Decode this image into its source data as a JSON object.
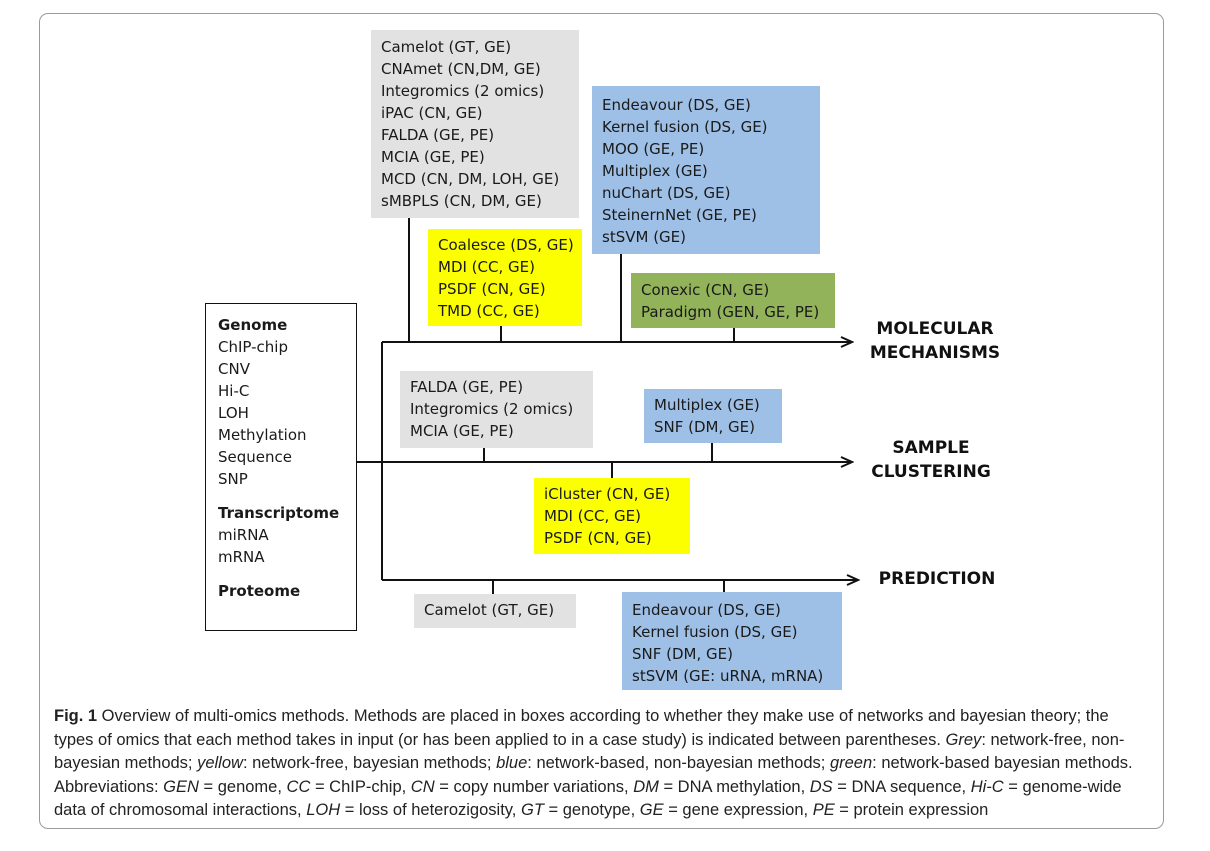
{
  "omics_box": {
    "groups": [
      {
        "heading": "Genome",
        "items": [
          "ChIP-chip",
          "CNV",
          "Hi-C",
          "LOH",
          "Methylation",
          "Sequence",
          "SNP"
        ]
      },
      {
        "heading": "Transcriptome",
        "items": [
          "miRNA",
          "mRNA"
        ]
      },
      {
        "heading": "Proteome",
        "items": []
      }
    ]
  },
  "outputs": {
    "molecular": [
      "MOLECULAR",
      "MECHANISMS"
    ],
    "clustering": [
      "SAMPLE",
      "CLUSTERING"
    ],
    "prediction": [
      "PREDICTION"
    ]
  },
  "colors": {
    "grey": "#e2e2e2",
    "blue": "#9fc0e6",
    "yellow": "#fcff00",
    "green": "#92b35a"
  },
  "boxes": {
    "mm_grey": [
      "Camelot (GT, GE)",
      "CNAmet (CN,DM, GE)",
      "Integromics (2 omics)",
      "iPAC (CN, GE)",
      "FALDA (GE, PE)",
      "MCIA (GE, PE)",
      "MCD (CN, DM, LOH, GE)",
      "sMBPLS (CN, DM, GE)"
    ],
    "mm_blue": [
      "Endeavour (DS, GE)",
      "Kernel fusion (DS, GE)",
      "MOO (GE, PE)",
      "Multiplex (GE)",
      "nuChart (DS, GE)",
      "SteinernNet (GE, PE)",
      "stSVM (GE)"
    ],
    "mm_yellow": [
      "Coalesce (DS, GE)",
      "MDI (CC, GE)",
      "PSDF (CN, GE)",
      "TMD (CC, GE)"
    ],
    "mm_green": [
      "Conexic (CN, GE)",
      "Paradigm (GEN, GE, PE)"
    ],
    "sc_grey": [
      "FALDA (GE, PE)",
      "Integromics (2 omics)",
      "MCIA (GE, PE)"
    ],
    "sc_blue": [
      "Multiplex (GE)",
      "SNF (DM, GE)"
    ],
    "sc_yellow": [
      "iCluster (CN, GE)",
      "MDI (CC, GE)",
      "PSDF (CN, GE)"
    ],
    "pr_grey": [
      "Camelot (GT, GE)"
    ],
    "pr_blue": [
      "Endeavour (DS, GE)",
      "Kernel fusion (DS, GE)",
      "SNF (DM, GE)",
      "stSVM (GE: uRNA, mRNA)"
    ]
  },
  "caption": {
    "fig_label": "Fig. 1",
    "segments": [
      {
        "t": " Overview of multi-omics methods. Methods are placed in boxes according to whether they make use of networks and bayesian theory; the types of omics that each method takes in input (or has been applied to in a case study) is indicated between parentheses. ",
        "i": false
      },
      {
        "t": "Grey",
        "i": true
      },
      {
        "t": ": network-free, non-bayesian methods; ",
        "i": false
      },
      {
        "t": "yellow",
        "i": true
      },
      {
        "t": ": network-free, bayesian methods; ",
        "i": false
      },
      {
        "t": "blue",
        "i": true
      },
      {
        "t": ": network-based, non-bayesian methods; ",
        "i": false
      },
      {
        "t": "green",
        "i": true
      },
      {
        "t": ": network-based bayesian methods. Abbreviations: ",
        "i": false
      },
      {
        "t": "GEN",
        "i": true
      },
      {
        "t": " = genome, ",
        "i": false
      },
      {
        "t": "CC",
        "i": true
      },
      {
        "t": " = ChIP-chip, ",
        "i": false
      },
      {
        "t": "CN",
        "i": true
      },
      {
        "t": " = copy number variations, ",
        "i": false
      },
      {
        "t": "DM",
        "i": true
      },
      {
        "t": " = DNA methylation, ",
        "i": false
      },
      {
        "t": "DS",
        "i": true
      },
      {
        "t": " = DNA sequence, ",
        "i": false
      },
      {
        "t": "Hi-C",
        "i": true
      },
      {
        "t": " = genome-wide data of chromosomal interactions, ",
        "i": false
      },
      {
        "t": "LOH",
        "i": true
      },
      {
        "t": " = loss of heterozigosity, ",
        "i": false
      },
      {
        "t": "GT",
        "i": true
      },
      {
        "t": " = genotype, ",
        "i": false
      },
      {
        "t": "GE",
        "i": true
      },
      {
        "t": " = gene expression, ",
        "i": false
      },
      {
        "t": "PE",
        "i": true
      },
      {
        "t": " = protein expression",
        "i": false
      }
    ]
  }
}
